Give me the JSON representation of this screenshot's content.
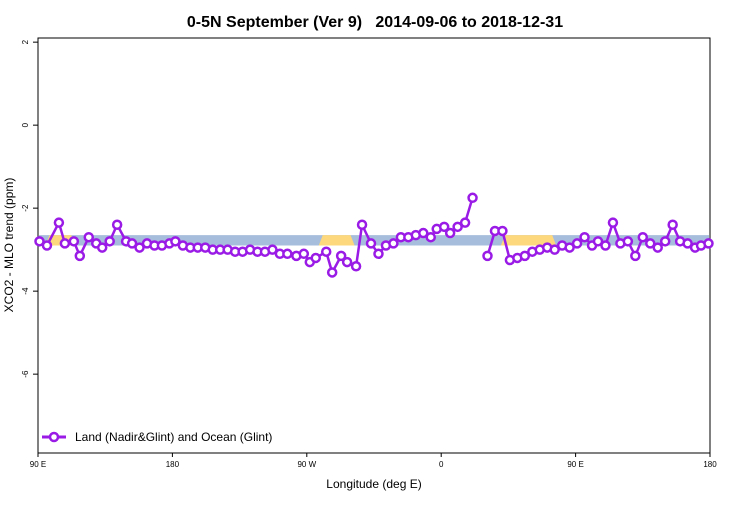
{
  "chart_data": {
    "type": "line",
    "title": "0-5N September (Ver 9)   2014-09-06 to 2018-12-31",
    "xlabel": "Longitude (deg E)",
    "ylabel": "XCO2 - MLO trend (ppm)",
    "xlim": [
      90,
      540
    ],
    "ylim": [
      -7.9,
      2.1
    ],
    "x_ticks": [
      {
        "value": 90,
        "label": "90 E"
      },
      {
        "value": 180,
        "label": "180"
      },
      {
        "value": 270,
        "label": "90 W"
      },
      {
        "value": 360,
        "label": "0"
      },
      {
        "value": 450,
        "label": "90 E"
      },
      {
        "value": 540,
        "label": "180"
      }
    ],
    "y_ticks": [
      {
        "value": 2,
        "label": "2"
      },
      {
        "value": 0,
        "label": "0"
      },
      {
        "value": -2,
        "label": "-2"
      },
      {
        "value": -4,
        "label": "-4"
      },
      {
        "value": -6,
        "label": "-6"
      }
    ],
    "surface_band": {
      "y_min": -2.9,
      "y_max": -2.65,
      "colors": {
        "ocean": "#a6bddb",
        "land": "#fdd87d"
      },
      "land_segments": [
        [
          95,
          115
        ],
        [
          278,
          302
        ],
        [
          400,
          437
        ],
        [
          562,
          585
        ]
      ]
    },
    "series": [
      {
        "name": "Land (Nadir&Glint) and Ocean (Glint)",
        "color": "#9a1ae6",
        "segments": [
          {
            "x": [
              91,
              96,
              104,
              108,
              114,
              118,
              124,
              129,
              133,
              138,
              143,
              149,
              153,
              158,
              163,
              168,
              173,
              178,
              182,
              187,
              192,
              197,
              202,
              207,
              212,
              217,
              222,
              227,
              232,
              237,
              242,
              247,
              252,
              257,
              263,
              268,
              272,
              276,
              283,
              287,
              293,
              297,
              303,
              307,
              313,
              318,
              323,
              328,
              333,
              338,
              343,
              348,
              353,
              357
            ],
            "y": [
              -2.8,
              -2.9,
              -2.35,
              -2.85,
              -2.8,
              -3.15,
              -2.7,
              -2.85,
              -2.95,
              -2.8,
              -2.4,
              -2.8,
              -2.85,
              -2.95,
              -2.85,
              -2.9,
              -2.9,
              -2.85,
              -2.8,
              -2.9,
              -2.95,
              -2.95,
              -2.95,
              -3.0,
              -3.0,
              -3.0,
              -3.05,
              -3.05,
              -3.0,
              -3.05,
              -3.05,
              -3.0,
              -3.1,
              -3.1,
              -3.15,
              -3.1,
              -3.3,
              -3.2,
              -3.05,
              -3.55,
              -3.15,
              -3.3,
              -3.4,
              -2.4,
              -2.85,
              -3.1,
              -2.9,
              -2.85,
              -2.7,
              -2.7,
              -2.65,
              -2.6,
              -2.7,
              -2.5
            ]
          },
          {
            "x": [
              362,
              366,
              371,
              376,
              381
            ],
            "y": [
              -2.45,
              -2.6,
              -2.45,
              -2.35,
              -1.75
            ]
          },
          {
            "x": [
              391,
              396,
              401,
              406,
              411,
              416,
              421,
              426,
              431,
              436,
              441,
              446,
              451,
              456,
              461,
              465,
              470,
              475,
              480,
              485,
              490,
              495,
              500,
              505,
              510,
              515,
              520,
              525,
              530,
              534,
              539
            ],
            "y": [
              -3.15,
              -2.55,
              -2.55,
              -3.25,
              -3.2,
              -3.15,
              -3.05,
              -3.0,
              -2.95,
              -3.0,
              -2.9,
              -2.95,
              -2.85,
              -2.7,
              -2.9,
              -2.8,
              -2.9,
              -2.35,
              -2.85,
              -2.8,
              -3.15,
              -2.7,
              -2.85,
              -2.95,
              -2.8,
              -2.4,
              -2.8,
              -2.85,
              -2.95,
              -2.9,
              -2.85
            ]
          }
        ]
      }
    ],
    "legend": {
      "position": "bottom-left"
    },
    "grid": false
  }
}
